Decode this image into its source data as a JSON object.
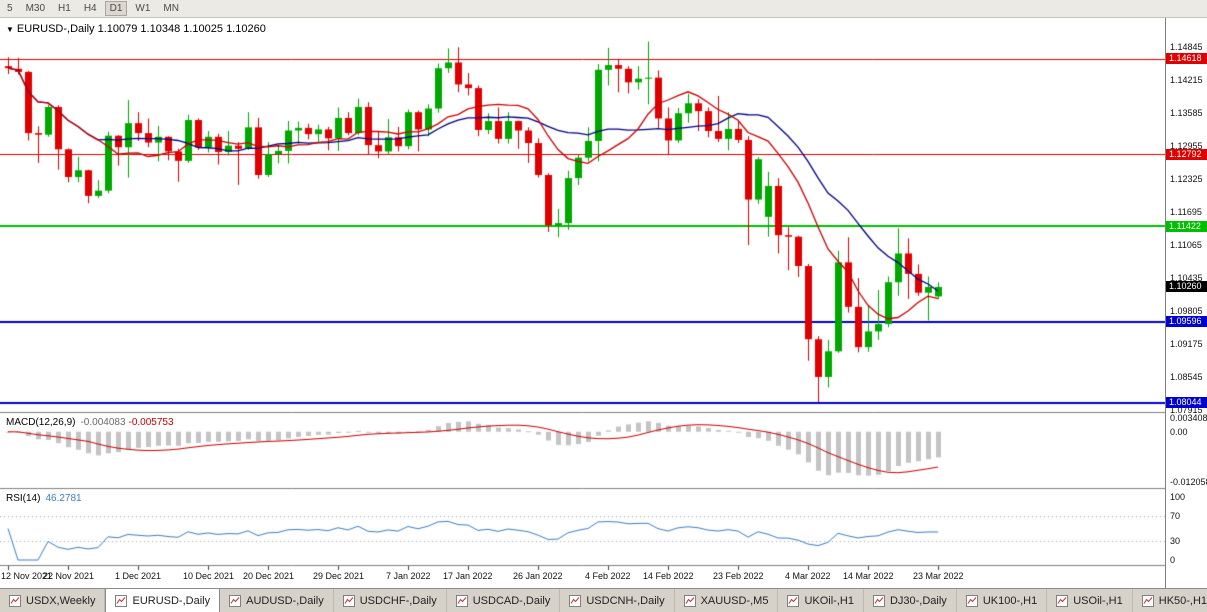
{
  "toolbar": {
    "periods": [
      {
        "label": "5",
        "active": false
      },
      {
        "label": "M30",
        "active": false
      },
      {
        "label": "H1",
        "active": false
      },
      {
        "label": "H4",
        "active": false
      },
      {
        "label": "D1",
        "active": true
      },
      {
        "label": "W1",
        "active": false
      },
      {
        "label": "MN",
        "active": false
      }
    ]
  },
  "title": {
    "collapse_icon": "▼",
    "symbol": "EURUSD-,Daily",
    "quote": "1.10079 1.10348 1.10025 1.10260"
  },
  "price_axis": {
    "ticks": [
      "1.14845",
      "1.14215",
      "1.13585",
      "1.12955",
      "1.12325",
      "1.11695",
      "1.11065",
      "1.10435",
      "1.09805",
      "1.09175",
      "1.08545",
      "1.07915"
    ],
    "line_badges": [
      {
        "value": 1.14618,
        "label": "1.14618",
        "color": "#E00000",
        "line_width": 1
      },
      {
        "value": 1.12792,
        "label": "1.12792",
        "color": "#E00000",
        "line_width": 1
      },
      {
        "value": 1.11422,
        "label": "1.11422",
        "color": "#00BE00",
        "line_width": 2
      },
      {
        "value": 1.09596,
        "label": "1.09596",
        "color": "#0000D2",
        "line_width": 2
      },
      {
        "value": 1.08044,
        "label": "1.08044",
        "color": "#0000D2",
        "line_width": 2
      }
    ],
    "current_price": {
      "value": 1.1026,
      "label": "1.10260",
      "color": "#000000"
    }
  },
  "time_axis": {
    "labels": [
      "12 Nov 2021",
      "22 Nov 2021",
      "1 Dec 2021",
      "10 Dec 2021",
      "20 Dec 2021",
      "29 Dec 2021",
      "7 Jan 2022",
      "17 Jan 2022",
      "26 Jan 2022",
      "4 Feb 2022",
      "14 Feb 2022",
      "23 Feb 2022",
      "4 Mar 2022",
      "14 Mar 2022",
      "23 Mar 2022"
    ]
  },
  "macd_panel": {
    "name": "MACD(12,26,9)",
    "value_main": "-0.004083",
    "value_signal": "-0.005753",
    "fast": 12,
    "slow": 26,
    "signal": 9,
    "ticks": [
      {
        "label": "0.003408",
        "value": 0.003408
      },
      {
        "label": "0.00",
        "value": 0
      },
      {
        "label": "-0.012058",
        "value": -0.012058
      }
    ],
    "histogram_color": "#C4C4C4",
    "signal_color": "#C80000"
  },
  "rsi_panel": {
    "name": "RSI(14)",
    "value": "46.2781",
    "period": 14,
    "ticks": [
      {
        "label": "100",
        "value": 100
      },
      {
        "label": "70",
        "value": 70
      },
      {
        "label": "30",
        "value": 30
      },
      {
        "label": "0",
        "value": 0
      }
    ],
    "levels": [
      70,
      30
    ],
    "line_color": "#3D7EBF"
  },
  "chart_data": {
    "type": "candlestick",
    "symbol": "EURUSD-",
    "timeframe": "Daily",
    "bull_color": "#00A800",
    "bear_color": "#E00000",
    "ma_fast": {
      "period": 10,
      "color": "#C80000"
    },
    "ma_slow": {
      "period": 18,
      "color": "#000080"
    },
    "ylim": [
      1.0787,
      1.154
    ],
    "ohlc": [
      {
        "d": "12 Nov 2021",
        "o": 1.1448,
        "h": 1.1465,
        "l": 1.1433,
        "c": 1.1444
      },
      {
        "d": "15 Nov 2021",
        "o": 1.1443,
        "h": 1.1464,
        "l": 1.1432,
        "c": 1.1437
      },
      {
        "d": "16 Nov 2021",
        "o": 1.1437,
        "h": 1.1439,
        "l": 1.1306,
        "c": 1.132
      },
      {
        "d": "17 Nov 2021",
        "o": 1.132,
        "h": 1.1333,
        "l": 1.1263,
        "c": 1.1317
      },
      {
        "d": "18 Nov 2021",
        "o": 1.1317,
        "h": 1.1374,
        "l": 1.1313,
        "c": 1.137
      },
      {
        "d": "19 Nov 2021",
        "o": 1.137,
        "h": 1.1373,
        "l": 1.125,
        "c": 1.1289
      },
      {
        "d": "22 Nov 2021",
        "o": 1.1289,
        "h": 1.1291,
        "l": 1.1226,
        "c": 1.1236
      },
      {
        "d": "23 Nov 2021",
        "o": 1.1236,
        "h": 1.1275,
        "l": 1.1226,
        "c": 1.1249
      },
      {
        "d": "24 Nov 2021",
        "o": 1.1249,
        "h": 1.125,
        "l": 1.1186,
        "c": 1.12
      },
      {
        "d": "25 Nov 2021",
        "o": 1.12,
        "h": 1.123,
        "l": 1.1196,
        "c": 1.121
      },
      {
        "d": "26 Nov 2021",
        "o": 1.121,
        "h": 1.1323,
        "l": 1.1205,
        "c": 1.1315
      },
      {
        "d": "29 Nov 2021",
        "o": 1.1315,
        "h": 1.1316,
        "l": 1.1258,
        "c": 1.1293
      },
      {
        "d": "30 Nov 2021",
        "o": 1.1293,
        "h": 1.1383,
        "l": 1.1235,
        "c": 1.1339
      },
      {
        "d": "1 Dec 2021",
        "o": 1.1339,
        "h": 1.136,
        "l": 1.1305,
        "c": 1.132
      },
      {
        "d": "2 Dec 2021",
        "o": 1.132,
        "h": 1.1348,
        "l": 1.1293,
        "c": 1.1302
      },
      {
        "d": "3 Dec 2021",
        "o": 1.1302,
        "h": 1.1334,
        "l": 1.1266,
        "c": 1.1313
      },
      {
        "d": "6 Dec 2021",
        "o": 1.1313,
        "h": 1.1314,
        "l": 1.1268,
        "c": 1.1285
      },
      {
        "d": "7 Dec 2021",
        "o": 1.1285,
        "h": 1.129,
        "l": 1.1227,
        "c": 1.1267
      },
      {
        "d": "8 Dec 2021",
        "o": 1.1267,
        "h": 1.1355,
        "l": 1.1263,
        "c": 1.1345
      },
      {
        "d": "9 Dec 2021",
        "o": 1.1345,
        "h": 1.1348,
        "l": 1.1288,
        "c": 1.1293
      },
      {
        "d": "10 Dec 2021",
        "o": 1.1293,
        "h": 1.1324,
        "l": 1.1283,
        "c": 1.1313
      },
      {
        "d": "13 Dec 2021",
        "o": 1.1313,
        "h": 1.1319,
        "l": 1.126,
        "c": 1.1284
      },
      {
        "d": "14 Dec 2021",
        "o": 1.1284,
        "h": 1.1324,
        "l": 1.1277,
        "c": 1.1296
      },
      {
        "d": "15 Dec 2021",
        "o": 1.1296,
        "h": 1.1303,
        "l": 1.1221,
        "c": 1.129
      },
      {
        "d": "16 Dec 2021",
        "o": 1.129,
        "h": 1.136,
        "l": 1.1288,
        "c": 1.1331
      },
      {
        "d": "17 Dec 2021",
        "o": 1.1331,
        "h": 1.1349,
        "l": 1.1233,
        "c": 1.124
      },
      {
        "d": "20 Dec 2021",
        "o": 1.124,
        "h": 1.1303,
        "l": 1.1236,
        "c": 1.128
      },
      {
        "d": "21 Dec 2021",
        "o": 1.128,
        "h": 1.1298,
        "l": 1.1262,
        "c": 1.1286
      },
      {
        "d": "22 Dec 2021",
        "o": 1.1286,
        "h": 1.1343,
        "l": 1.1262,
        "c": 1.1325
      },
      {
        "d": "23 Dec 2021",
        "o": 1.1325,
        "h": 1.1342,
        "l": 1.13,
        "c": 1.133
      },
      {
        "d": "24 Dec 2021",
        "o": 1.133,
        "h": 1.1338,
        "l": 1.1308,
        "c": 1.1318
      },
      {
        "d": "27 Dec 2021",
        "o": 1.1318,
        "h": 1.1336,
        "l": 1.1304,
        "c": 1.1327
      },
      {
        "d": "28 Dec 2021",
        "o": 1.1327,
        "h": 1.1332,
        "l": 1.1287,
        "c": 1.131
      },
      {
        "d": "29 Dec 2021",
        "o": 1.131,
        "h": 1.1369,
        "l": 1.1286,
        "c": 1.1349
      },
      {
        "d": "30 Dec 2021",
        "o": 1.1349,
        "h": 1.136,
        "l": 1.1316,
        "c": 1.132
      },
      {
        "d": "31 Dec 2021",
        "o": 1.132,
        "h": 1.1386,
        "l": 1.1316,
        "c": 1.137
      },
      {
        "d": "3 Jan 2022",
        "o": 1.137,
        "h": 1.1379,
        "l": 1.1279,
        "c": 1.1297
      },
      {
        "d": "4 Jan 2022",
        "o": 1.1297,
        "h": 1.1323,
        "l": 1.1272,
        "c": 1.1285
      },
      {
        "d": "5 Jan 2022",
        "o": 1.1285,
        "h": 1.1347,
        "l": 1.1279,
        "c": 1.1312
      },
      {
        "d": "6 Jan 2022",
        "o": 1.1312,
        "h": 1.1332,
        "l": 1.1285,
        "c": 1.1295
      },
      {
        "d": "7 Jan 2022",
        "o": 1.1295,
        "h": 1.1365,
        "l": 1.1289,
        "c": 1.136
      },
      {
        "d": "10 Jan 2022",
        "o": 1.136,
        "h": 1.1363,
        "l": 1.1285,
        "c": 1.1327
      },
      {
        "d": "11 Jan 2022",
        "o": 1.1327,
        "h": 1.1375,
        "l": 1.1314,
        "c": 1.1367
      },
      {
        "d": "12 Jan 2022",
        "o": 1.1367,
        "h": 1.1453,
        "l": 1.1359,
        "c": 1.1444
      },
      {
        "d": "13 Jan 2022",
        "o": 1.1444,
        "h": 1.1482,
        "l": 1.1435,
        "c": 1.1455
      },
      {
        "d": "14 Jan 2022",
        "o": 1.1455,
        "h": 1.1484,
        "l": 1.1398,
        "c": 1.1413
      },
      {
        "d": "17 Jan 2022",
        "o": 1.1413,
        "h": 1.1435,
        "l": 1.1392,
        "c": 1.1406
      },
      {
        "d": "18 Jan 2022",
        "o": 1.1406,
        "h": 1.1411,
        "l": 1.1314,
        "c": 1.1326
      },
      {
        "d": "19 Jan 2022",
        "o": 1.1326,
        "h": 1.1358,
        "l": 1.1318,
        "c": 1.1343
      },
      {
        "d": "20 Jan 2022",
        "o": 1.1343,
        "h": 1.1369,
        "l": 1.13,
        "c": 1.1309
      },
      {
        "d": "21 Jan 2022",
        "o": 1.1309,
        "h": 1.136,
        "l": 1.13,
        "c": 1.1343
      },
      {
        "d": "24 Jan 2022",
        "o": 1.1343,
        "h": 1.1344,
        "l": 1.129,
        "c": 1.1325
      },
      {
        "d": "25 Jan 2022",
        "o": 1.1325,
        "h": 1.1331,
        "l": 1.1263,
        "c": 1.1301
      },
      {
        "d": "26 Jan 2022",
        "o": 1.1301,
        "h": 1.131,
        "l": 1.1235,
        "c": 1.124
      },
      {
        "d": "27 Jan 2022",
        "o": 1.124,
        "h": 1.1243,
        "l": 1.1131,
        "c": 1.1144
      },
      {
        "d": "28 Jan 2022",
        "o": 1.1144,
        "h": 1.1175,
        "l": 1.1121,
        "c": 1.1148
      },
      {
        "d": "31 Jan 2022",
        "o": 1.1148,
        "h": 1.1248,
        "l": 1.1135,
        "c": 1.1234
      },
      {
        "d": "1 Feb 2022",
        "o": 1.1234,
        "h": 1.1279,
        "l": 1.1221,
        "c": 1.1273
      },
      {
        "d": "2 Feb 2022",
        "o": 1.1273,
        "h": 1.1331,
        "l": 1.1266,
        "c": 1.1305
      },
      {
        "d": "3 Feb 2022",
        "o": 1.1305,
        "h": 1.1452,
        "l": 1.1266,
        "c": 1.1441
      },
      {
        "d": "4 Feb 2022",
        "o": 1.1441,
        "h": 1.1483,
        "l": 1.1411,
        "c": 1.145
      },
      {
        "d": "7 Feb 2022",
        "o": 1.145,
        "h": 1.1462,
        "l": 1.1398,
        "c": 1.1443
      },
      {
        "d": "8 Feb 2022",
        "o": 1.1443,
        "h": 1.1448,
        "l": 1.1396,
        "c": 1.1417
      },
      {
        "d": "9 Feb 2022",
        "o": 1.1417,
        "h": 1.1448,
        "l": 1.1403,
        "c": 1.1424
      },
      {
        "d": "10 Feb 2022",
        "o": 1.1424,
        "h": 1.1495,
        "l": 1.1375,
        "c": 1.1426
      },
      {
        "d": "11 Feb 2022",
        "o": 1.1426,
        "h": 1.144,
        "l": 1.133,
        "c": 1.1348
      },
      {
        "d": "14 Feb 2022",
        "o": 1.1348,
        "h": 1.1369,
        "l": 1.128,
        "c": 1.1306
      },
      {
        "d": "15 Feb 2022",
        "o": 1.1306,
        "h": 1.1368,
        "l": 1.1301,
        "c": 1.1358
      },
      {
        "d": "16 Feb 2022",
        "o": 1.1358,
        "h": 1.1395,
        "l": 1.134,
        "c": 1.1377
      },
      {
        "d": "17 Feb 2022",
        "o": 1.1377,
        "h": 1.1385,
        "l": 1.1324,
        "c": 1.1362
      },
      {
        "d": "18 Feb 2022",
        "o": 1.1362,
        "h": 1.1369,
        "l": 1.1312,
        "c": 1.1324
      },
      {
        "d": "21 Feb 2022",
        "o": 1.1324,
        "h": 1.1391,
        "l": 1.1303,
        "c": 1.1309
      },
      {
        "d": "22 Feb 2022",
        "o": 1.1309,
        "h": 1.136,
        "l": 1.1287,
        "c": 1.1328
      },
      {
        "d": "23 Feb 2022",
        "o": 1.1328,
        "h": 1.1342,
        "l": 1.1301,
        "c": 1.1307
      },
      {
        "d": "24 Feb 2022",
        "o": 1.1307,
        "h": 1.1314,
        "l": 1.1106,
        "c": 1.1193
      },
      {
        "d": "25 Feb 2022",
        "o": 1.1193,
        "h": 1.1274,
        "l": 1.1185,
        "c": 1.127
      },
      {
        "d": "28 Feb 2022",
        "o": 1.116,
        "h": 1.1246,
        "l": 1.1122,
        "c": 1.1219
      },
      {
        "d": "1 Mar 2022",
        "o": 1.1219,
        "h": 1.1234,
        "l": 1.109,
        "c": 1.1125
      },
      {
        "d": "2 Mar 2022",
        "o": 1.1125,
        "h": 1.114,
        "l": 1.1058,
        "c": 1.1122
      },
      {
        "d": "3 Mar 2022",
        "o": 1.1122,
        "h": 1.1124,
        "l": 1.1045,
        "c": 1.1066
      },
      {
        "d": "4 Mar 2022",
        "o": 1.1066,
        "h": 1.107,
        "l": 1.0885,
        "c": 1.0926
      },
      {
        "d": "7 Mar 2022",
        "o": 1.0926,
        "h": 1.0932,
        "l": 1.0806,
        "c": 1.0854
      },
      {
        "d": "8 Mar 2022",
        "o": 1.0854,
        "h": 1.0925,
        "l": 1.0834,
        "c": 1.0903
      },
      {
        "d": "9 Mar 2022",
        "o": 1.0903,
        "h": 1.1095,
        "l": 1.09,
        "c": 1.1073
      },
      {
        "d": "10 Mar 2022",
        "o": 1.1073,
        "h": 1.1121,
        "l": 1.0977,
        "c": 1.0988
      },
      {
        "d": "11 Mar 2022",
        "o": 1.0988,
        "h": 1.1043,
        "l": 1.0901,
        "c": 1.0911
      },
      {
        "d": "14 Mar 2022",
        "o": 1.0911,
        "h": 1.0991,
        "l": 1.0902,
        "c": 1.0941
      },
      {
        "d": "15 Mar 2022",
        "o": 1.0941,
        "h": 1.102,
        "l": 1.0925,
        "c": 1.0955
      },
      {
        "d": "16 Mar 2022",
        "o": 1.0955,
        "h": 1.1046,
        "l": 1.0949,
        "c": 1.1035
      },
      {
        "d": "17 Mar 2022",
        "o": 1.1035,
        "h": 1.1138,
        "l": 1.1009,
        "c": 1.109
      },
      {
        "d": "18 Mar 2022",
        "o": 1.109,
        "h": 1.1119,
        "l": 1.1003,
        "c": 1.1051
      },
      {
        "d": "21 Mar 2022",
        "o": 1.1051,
        "h": 1.1069,
        "l": 1.1009,
        "c": 1.1015
      },
      {
        "d": "22 Mar 2022",
        "o": 1.1015,
        "h": 1.1046,
        "l": 1.0962,
        "c": 1.1026
      },
      {
        "d": "23 Mar 2022",
        "o": 1.10079,
        "h": 1.10348,
        "l": 1.10025,
        "c": 1.1026
      }
    ]
  },
  "tabbar": {
    "tabs": [
      {
        "label": "USDX,Weekly",
        "active": false
      },
      {
        "label": "EURUSD-,Daily",
        "active": true
      },
      {
        "label": "AUDUSD-,Daily",
        "active": false
      },
      {
        "label": "USDCHF-,Daily",
        "active": false
      },
      {
        "label": "USDCAD-,Daily",
        "active": false
      },
      {
        "label": "USDCNH-,Daily",
        "active": false
      },
      {
        "label": "XAUUSD-,M5",
        "active": false
      },
      {
        "label": "UKOil-,H1",
        "active": false
      },
      {
        "label": "DJ30-,Daily",
        "active": false
      },
      {
        "label": "UK100-,H1",
        "active": false
      },
      {
        "label": "USOil-,H1",
        "active": false
      },
      {
        "label": "HK50-,H1",
        "active": false
      }
    ]
  }
}
